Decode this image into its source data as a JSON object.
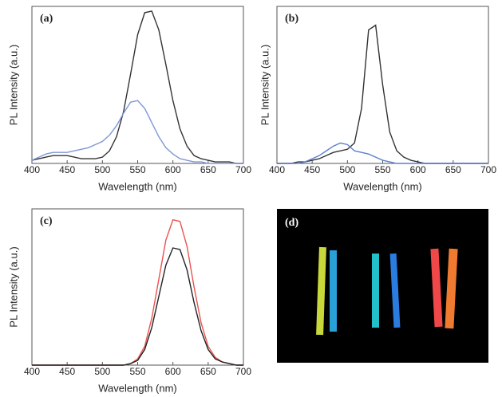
{
  "chart_data": [
    {
      "type": "line",
      "title": "(a)",
      "xlabel": "Wavelength (nm)",
      "ylabel": "PL Intensity (a.u.)",
      "x": [
        400,
        410,
        420,
        430,
        440,
        450,
        460,
        470,
        480,
        490,
        500,
        510,
        520,
        530,
        540,
        550,
        560,
        570,
        580,
        590,
        600,
        610,
        620,
        630,
        640,
        650,
        660,
        670,
        680,
        690,
        700
      ],
      "series": [
        {
          "color": "#333333",
          "values": [
            0.02,
            0.03,
            0.04,
            0.05,
            0.05,
            0.05,
            0.04,
            0.03,
            0.03,
            0.03,
            0.04,
            0.08,
            0.17,
            0.33,
            0.57,
            0.82,
            0.96,
            0.97,
            0.85,
            0.63,
            0.4,
            0.22,
            0.11,
            0.05,
            0.03,
            0.02,
            0.01,
            0.01,
            0.01,
            0,
            0
          ]
        },
        {
          "color": "#7f97d6",
          "values": [
            0.02,
            0.04,
            0.06,
            0.07,
            0.07,
            0.07,
            0.08,
            0.09,
            0.1,
            0.12,
            0.14,
            0.18,
            0.24,
            0.32,
            0.39,
            0.4,
            0.35,
            0.26,
            0.17,
            0.1,
            0.06,
            0.03,
            0.02,
            0.01,
            0.01,
            0,
            0,
            0,
            0,
            0,
            0
          ]
        }
      ],
      "xlim": [
        400,
        700
      ],
      "xticks": [
        400,
        450,
        500,
        550,
        600,
        650,
        700
      ],
      "ylim": [
        0,
        1
      ]
    },
    {
      "type": "line",
      "title": "(b)",
      "xlabel": "Wavelength (nm)",
      "ylabel": "PL Intensity (a.u.)",
      "x": [
        400,
        410,
        420,
        430,
        440,
        450,
        460,
        470,
        480,
        490,
        500,
        510,
        520,
        530,
        540,
        550,
        560,
        570,
        580,
        590,
        600,
        610,
        620,
        630,
        640,
        650,
        660,
        670,
        680,
        690,
        700
      ],
      "series": [
        {
          "color": "#333333",
          "values": [
            0,
            0,
            0,
            0.01,
            0.01,
            0.02,
            0.03,
            0.05,
            0.07,
            0.08,
            0.09,
            0.13,
            0.35,
            0.85,
            0.88,
            0.5,
            0.2,
            0.08,
            0.04,
            0.02,
            0.01,
            0,
            0,
            0,
            0,
            0,
            0,
            0,
            0,
            0,
            0
          ]
        },
        {
          "color": "#5b7fd0",
          "values": [
            0,
            0,
            0,
            0,
            0.01,
            0.03,
            0.05,
            0.08,
            0.11,
            0.13,
            0.12,
            0.08,
            0.07,
            0.06,
            0.04,
            0.02,
            0.01,
            0,
            0,
            0,
            0,
            0,
            0,
            0,
            0,
            0,
            0,
            0,
            0,
            0,
            0
          ]
        }
      ],
      "xlim": [
        400,
        700
      ],
      "xticks": [
        400,
        450,
        500,
        550,
        600,
        650,
        700
      ],
      "ylim": [
        0,
        1
      ]
    },
    {
      "type": "line",
      "title": "(c)",
      "xlabel": "Wavelength (nm)",
      "ylabel": "PL Intensity (a.u.)",
      "x": [
        400,
        410,
        420,
        430,
        440,
        450,
        460,
        470,
        480,
        490,
        500,
        510,
        520,
        530,
        540,
        550,
        560,
        570,
        580,
        590,
        600,
        610,
        620,
        630,
        640,
        650,
        660,
        670,
        680,
        690,
        700
      ],
      "series": [
        {
          "color": "#e8534f",
          "values": [
            0,
            0,
            0,
            0,
            0,
            0,
            0,
            0,
            0,
            0,
            0,
            0,
            0,
            0,
            0.01,
            0.04,
            0.12,
            0.3,
            0.55,
            0.8,
            0.93,
            0.92,
            0.76,
            0.5,
            0.27,
            0.12,
            0.05,
            0.02,
            0.01,
            0,
            0
          ]
        },
        {
          "color": "#222222",
          "values": [
            0,
            0,
            0,
            0,
            0,
            0,
            0,
            0,
            0,
            0,
            0,
            0,
            0,
            0,
            0.01,
            0.03,
            0.1,
            0.24,
            0.44,
            0.64,
            0.75,
            0.74,
            0.61,
            0.4,
            0.22,
            0.1,
            0.04,
            0.02,
            0.01,
            0,
            0
          ]
        }
      ],
      "xlim": [
        400,
        700
      ],
      "xticks": [
        400,
        450,
        500,
        550,
        600,
        650,
        700
      ],
      "ylim": [
        0,
        1
      ]
    }
  ],
  "photo": {
    "label": "(d)"
  }
}
